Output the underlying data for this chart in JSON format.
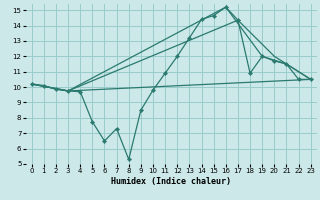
{
  "xlabel": "Humidex (Indice chaleur)",
  "background_color": "#cce8e8",
  "grid_color": "#99cccc",
  "line_color": "#2a7a70",
  "xlim": [
    -0.5,
    23.5
  ],
  "ylim": [
    5,
    15.4
  ],
  "xticks": [
    0,
    1,
    2,
    3,
    4,
    5,
    6,
    7,
    8,
    9,
    10,
    11,
    12,
    13,
    14,
    15,
    16,
    17,
    18,
    19,
    20,
    21,
    22,
    23
  ],
  "yticks": [
    5,
    6,
    7,
    8,
    9,
    10,
    11,
    12,
    13,
    14,
    15
  ],
  "main_line": {
    "x": [
      0,
      1,
      2,
      3,
      4,
      5,
      6,
      7,
      8,
      9,
      10,
      11,
      12,
      13,
      14,
      15,
      16,
      17,
      18,
      19,
      20,
      21,
      22,
      23
    ],
    "y": [
      10.2,
      10.1,
      9.85,
      9.75,
      9.7,
      7.75,
      6.5,
      7.3,
      5.3,
      8.5,
      9.8,
      10.9,
      12.0,
      13.2,
      14.4,
      14.65,
      15.2,
      14.35,
      10.9,
      12.0,
      11.7,
      11.5,
      10.5,
      10.5
    ]
  },
  "smooth_lines": [
    {
      "x": [
        0,
        3,
        16,
        19,
        21,
        23
      ],
      "y": [
        10.2,
        9.75,
        15.2,
        12.0,
        11.5,
        10.5
      ]
    },
    {
      "x": [
        0,
        3,
        17,
        20,
        23
      ],
      "y": [
        10.2,
        9.75,
        14.35,
        12.0,
        10.5
      ]
    },
    {
      "x": [
        0,
        3,
        23
      ],
      "y": [
        10.2,
        9.75,
        10.5
      ]
    }
  ]
}
